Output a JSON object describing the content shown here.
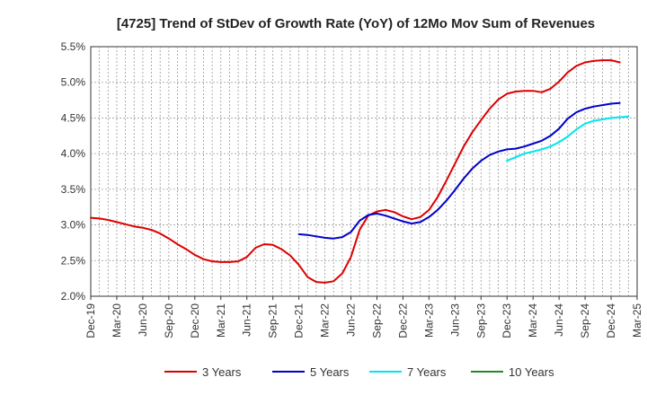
{
  "chart_data": {
    "type": "line",
    "title": "[4725]  Trend of StDev of Growth Rate (YoY) of 12Mo Mov Sum of Revenues",
    "xlabel": "",
    "ylabel": "",
    "ylim": [
      2.0,
      5.5
    ],
    "y_ticks": [
      2.0,
      2.5,
      3.0,
      3.5,
      4.0,
      4.5,
      5.0,
      5.5
    ],
    "y_tick_labels": [
      "2.0%",
      "2.5%",
      "3.0%",
      "3.5%",
      "4.0%",
      "4.5%",
      "5.0%",
      "5.5%"
    ],
    "x_range_months": [
      0,
      63
    ],
    "x_ticks": [
      {
        "month": 0,
        "label": "Dec-19"
      },
      {
        "month": 3,
        "label": "Mar-20"
      },
      {
        "month": 6,
        "label": "Jun-20"
      },
      {
        "month": 9,
        "label": "Sep-20"
      },
      {
        "month": 12,
        "label": "Dec-20"
      },
      {
        "month": 15,
        "label": "Mar-21"
      },
      {
        "month": 18,
        "label": "Jun-21"
      },
      {
        "month": 21,
        "label": "Sep-21"
      },
      {
        "month": 24,
        "label": "Dec-21"
      },
      {
        "month": 27,
        "label": "Mar-22"
      },
      {
        "month": 30,
        "label": "Jun-22"
      },
      {
        "month": 33,
        "label": "Sep-22"
      },
      {
        "month": 36,
        "label": "Dec-22"
      },
      {
        "month": 39,
        "label": "Mar-23"
      },
      {
        "month": 42,
        "label": "Jun-23"
      },
      {
        "month": 45,
        "label": "Sep-23"
      },
      {
        "month": 48,
        "label": "Dec-23"
      },
      {
        "month": 51,
        "label": "Mar-24"
      },
      {
        "month": 54,
        "label": "Jun-24"
      },
      {
        "month": 57,
        "label": "Sep-24"
      },
      {
        "month": 60,
        "label": "Dec-24"
      },
      {
        "month": 63,
        "label": "Mar-25"
      }
    ],
    "grid": true,
    "legend_position": "bottom",
    "series": [
      {
        "name": "3 Years",
        "color": "#dd0000",
        "start_month": 0,
        "values": [
          3.1,
          3.09,
          3.07,
          3.04,
          3.01,
          2.98,
          2.96,
          2.93,
          2.88,
          2.81,
          2.73,
          2.66,
          2.58,
          2.52,
          2.49,
          2.48,
          2.48,
          2.49,
          2.55,
          2.68,
          2.73,
          2.72,
          2.66,
          2.57,
          2.44,
          2.27,
          2.2,
          2.19,
          2.21,
          2.32,
          2.55,
          2.93,
          3.13,
          3.19,
          3.21,
          3.18,
          3.12,
          3.08,
          3.11,
          3.21,
          3.39,
          3.62,
          3.86,
          4.1,
          4.3,
          4.47,
          4.63,
          4.76,
          4.84,
          4.87,
          4.88,
          4.88,
          4.86,
          4.91,
          5.01,
          5.14,
          5.23,
          5.28,
          5.3,
          5.31,
          5.31,
          5.28
        ]
      },
      {
        "name": "5 Years",
        "color": "#0000cc",
        "start_month": 24,
        "values": [
          2.87,
          2.86,
          2.84,
          2.82,
          2.81,
          2.83,
          2.9,
          3.06,
          3.14,
          3.16,
          3.13,
          3.09,
          3.05,
          3.02,
          3.04,
          3.11,
          3.21,
          3.34,
          3.49,
          3.65,
          3.79,
          3.9,
          3.98,
          4.03,
          4.06,
          4.07,
          4.1,
          4.14,
          4.18,
          4.25,
          4.35,
          4.49,
          4.58,
          4.63,
          4.66,
          4.68,
          4.7,
          4.71
        ]
      },
      {
        "name": "7 Years",
        "color": "#00e5ee",
        "start_month": 48,
        "values": [
          3.9,
          3.95,
          4.0,
          4.03,
          4.06,
          4.1,
          4.16,
          4.24,
          4.34,
          4.42,
          4.46,
          4.48,
          4.5,
          4.51,
          4.52
        ]
      },
      {
        "name": "10 Years",
        "color": "#228b22",
        "start_month": 0,
        "values": []
      }
    ]
  }
}
